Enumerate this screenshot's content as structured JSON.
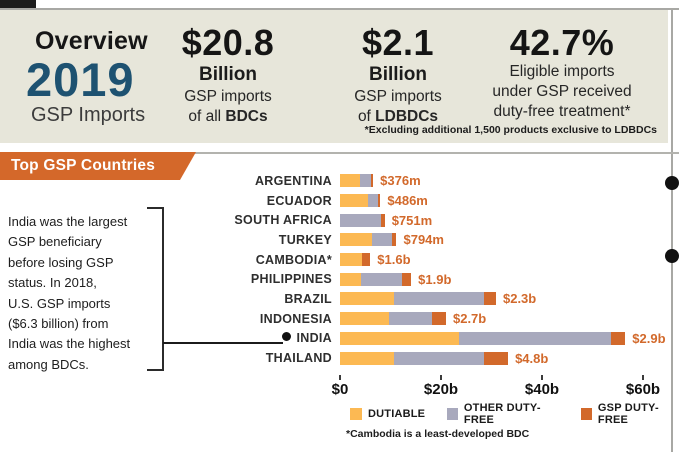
{
  "colors": {
    "panel_bg": "#e7e6da",
    "navy": "#1e5271",
    "banner_orange": "#d4682a",
    "dutiable_yellow": "#fcb953",
    "other_dutyfree_gray": "#a8a9bd",
    "gsp_dutyfree_orange": "#d2692b"
  },
  "header": {
    "brand": {
      "line1": "Overview",
      "line2": "2019",
      "line3": "GSP Imports"
    },
    "stats": [
      {
        "value": "$20.8",
        "unit": "Billion",
        "desc": [
          [
            {
              "t": "GSP imports"
            }
          ],
          [
            {
              "t": "of all "
            },
            {
              "t": "BDCs",
              "b": true
            }
          ]
        ]
      },
      {
        "value": "$2.1",
        "unit": "Billion",
        "desc": [
          [
            {
              "t": "GSP imports"
            }
          ],
          [
            {
              "t": "of "
            },
            {
              "t": "LDBDCs",
              "b": true
            }
          ]
        ]
      },
      {
        "value": "42.7%",
        "unit": "",
        "desc": [
          [
            {
              "t": "Eligible imports"
            }
          ],
          [
            {
              "t": "under GSP received"
            }
          ],
          [
            {
              "t": "duty-free treatment*"
            }
          ]
        ]
      }
    ],
    "footnote": "*Excluding additional 1,500 products exclusive to LDBDCs"
  },
  "banner": {
    "label": "Top GSP Countries"
  },
  "sidebar": {
    "note": "India was the largest\nGSP beneficiary\nbefore losing GSP\nstatus. In 2018,\nU.S. GSP imports\n($6.3 billion) from\nIndia was the highest\namong BDCs."
  },
  "chart_data": {
    "type": "bar",
    "orientation": "horizontal",
    "stacked": true,
    "units": "USD billions",
    "categories": [
      "ARGENTINA",
      "ECUADOR",
      "SOUTH AFRICA",
      "TURKEY",
      "CAMBODIA*",
      "PHILIPPINES",
      "BRAZIL",
      "INDONESIA",
      "INDIA",
      "THAILAND"
    ],
    "series": [
      {
        "name": "DUTIABLE",
        "color": "#fcb953",
        "values": [
          4.0,
          5.5,
          0,
          6.4,
          4.4,
          4.2,
          10.6,
          9.7,
          23.6,
          10.7
        ]
      },
      {
        "name": "OTHER DUTY-FREE",
        "color": "#a8a9bd",
        "values": [
          2.2,
          2.0,
          8.1,
          4.0,
          0,
          8.0,
          18.0,
          8.6,
          30.0,
          17.8
        ]
      },
      {
        "name": "GSP DUTY-FREE",
        "color": "#d2692b",
        "values": [
          0.376,
          0.486,
          0.751,
          0.794,
          1.6,
          1.9,
          2.3,
          2.7,
          2.9,
          4.8
        ]
      }
    ],
    "value_labels": [
      "$376m",
      "$486m",
      "$751m",
      "$794m",
      "$1.6b",
      "$1.9b",
      "$2.3b",
      "$2.7b",
      "$2.9b",
      "$4.8b"
    ],
    "value_labels_refer_to": "GSP DUTY-FREE",
    "x_ticks": [
      "$0",
      "$20b",
      "$40b",
      "$60b"
    ],
    "x_tick_values": [
      0,
      20,
      40,
      60
    ],
    "xlim": [
      0,
      61
    ],
    "marker_category": "INDIA",
    "legend_position": "bottom",
    "grid": false,
    "footnote": "*Cambodia is a least-developed BDC"
  }
}
